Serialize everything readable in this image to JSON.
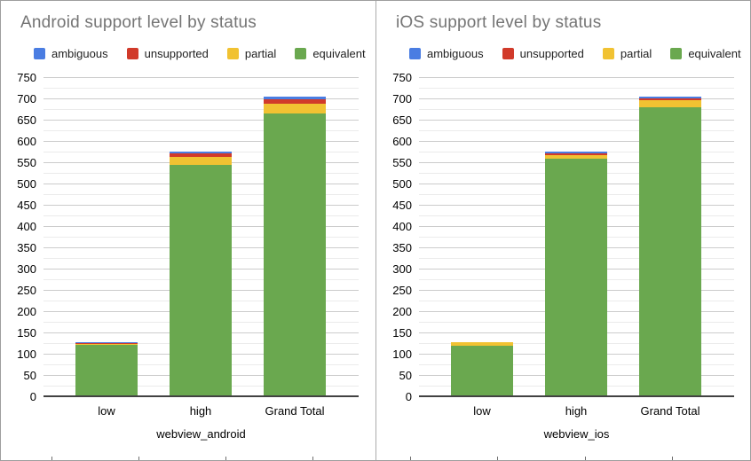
{
  "chart_data": [
    {
      "type": "bar",
      "stacked": true,
      "title": "Android support level by status",
      "xlabel": "webview_android",
      "ylabel": "",
      "categories": [
        "low",
        "high",
        "Grand Total"
      ],
      "series": [
        {
          "name": "ambiguous",
          "color": "#4A7DE2",
          "values": [
            2,
            5,
            7
          ]
        },
        {
          "name": "unsupported",
          "color": "#D13A2A",
          "values": [
            2,
            8,
            10
          ]
        },
        {
          "name": "partial",
          "color": "#F1C232",
          "values": [
            4,
            19,
            23
          ]
        },
        {
          "name": "equivalent",
          "color": "#6AA84F",
          "values": [
            122,
            545,
            667
          ]
        }
      ],
      "stack_order_bottom_to_top": [
        "equivalent",
        "partial",
        "unsupported",
        "ambiguous"
      ],
      "ylim": [
        0,
        750
      ],
      "ytick_step": 50,
      "minor_tick_step": 25,
      "grid": true,
      "legend_position": "top"
    },
    {
      "type": "bar",
      "stacked": true,
      "title": "iOS support level by status",
      "xlabel": "webview_ios",
      "ylabel": "",
      "categories": [
        "low",
        "high",
        "Grand Total"
      ],
      "series": [
        {
          "name": "ambiguous",
          "color": "#4A7DE2",
          "values": [
            0,
            5,
            5
          ]
        },
        {
          "name": "unsupported",
          "color": "#D13A2A",
          "values": [
            0,
            4,
            4
          ]
        },
        {
          "name": "partial",
          "color": "#F1C232",
          "values": [
            8,
            8,
            16
          ]
        },
        {
          "name": "equivalent",
          "color": "#6AA84F",
          "values": [
            121,
            561,
            682
          ]
        }
      ],
      "stack_order_bottom_to_top": [
        "equivalent",
        "partial",
        "unsupported",
        "ambiguous"
      ],
      "ylim": [
        0,
        750
      ],
      "ytick_step": 50,
      "minor_tick_step": 25,
      "grid": true,
      "legend_position": "top"
    }
  ],
  "colors": {
    "title_gray": "#757575",
    "grid_major": "#cccccc",
    "grid_minor": "#ebebeb",
    "axis_line": "#424242"
  }
}
